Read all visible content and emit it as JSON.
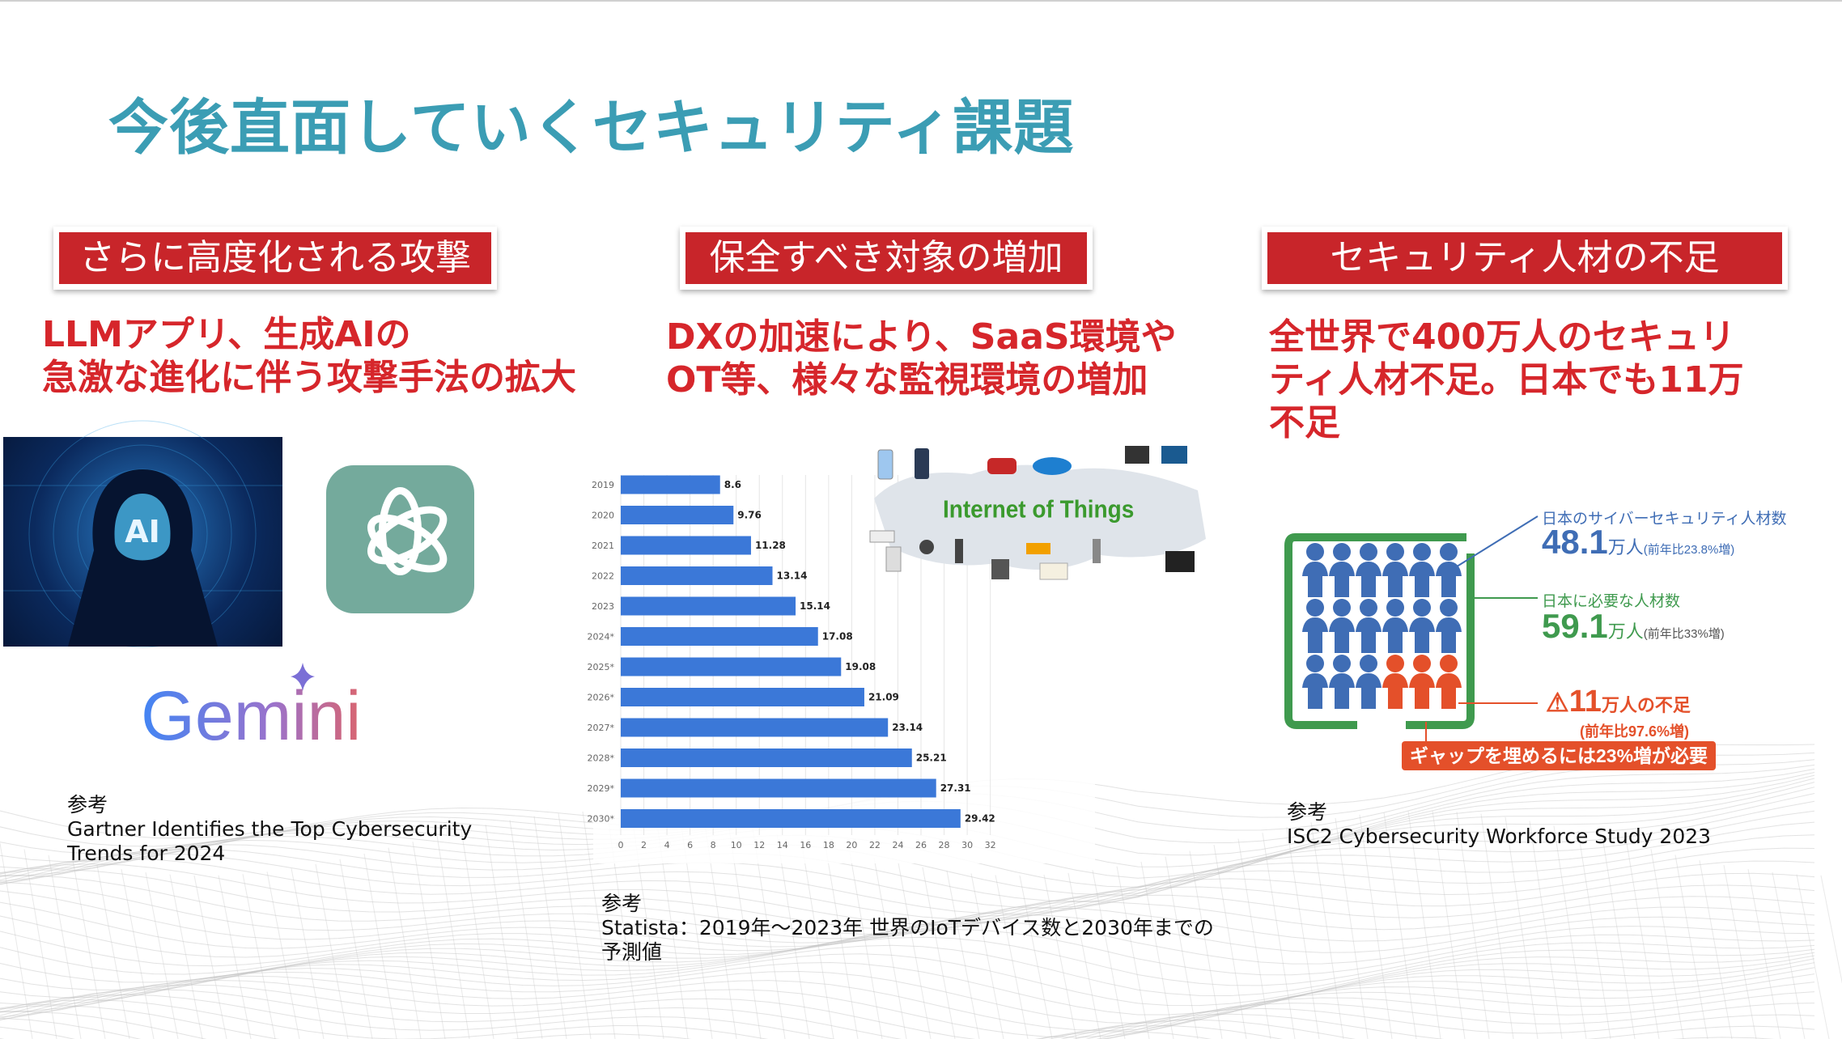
{
  "slide": {
    "title": "今後直面していくセキュリティ課題"
  },
  "columns": [
    {
      "tag": "さらに高度化される攻撃",
      "heading_lines": [
        "LLMアプリ、生成AIの",
        "急激な進化に伴う攻撃手法の拡大"
      ],
      "images": {
        "hacker_text": "AI",
        "openai_logo": "openai-logo",
        "gemini_logo": "Gemini"
      },
      "ref_label": "参考",
      "ref_lines": [
        "Gartner Identifies the Top Cybersecurity",
        "Trends for 2024"
      ]
    },
    {
      "tag": "保全すべき対象の増加",
      "heading_lines": [
        "DXの加速により、SaaS環境や",
        "OT等、様々な監視環境の増加"
      ],
      "iot_label": "Internet of Things",
      "ref_label": "参考",
      "ref_lines": [
        "Statista：2019年～2023年 世界のIoTデバイス数と2030年までの",
        "予測値"
      ]
    },
    {
      "tag": "セキュリティ人材の不足",
      "heading_lines": [
        "全世界で400万人のセキュリ",
        "ティ人材不足。日本でも11万",
        "不足"
      ],
      "ref_label": "参考",
      "ref_lines": [
        "ISC2 Cybersecurity Workforce Study 2023"
      ],
      "infographic": {
        "current_label": "日本のサイバーセキュリティ人材数",
        "current_value": "48.1",
        "current_unit": "万人",
        "current_note": "(前年比23.8%増)",
        "needed_label": "日本に必要な人材数",
        "needed_value": "59.1",
        "needed_unit": "万人",
        "needed_note": "(前年比33%増)",
        "shortage_value": "11",
        "shortage_unit": "万人の不足",
        "shortage_note": "(前年比97.6%増)",
        "gap_text": "ギャップを埋めるには23%増が必要",
        "people_total": 18,
        "people_short": 3,
        "colors": {
          "current": "#3f6db5",
          "needed": "#3f9a4e",
          "shortage": "#e4502a"
        }
      }
    }
  ],
  "chart_data": {
    "type": "bar",
    "orientation": "horizontal",
    "categories": [
      "2019",
      "2020",
      "2021",
      "2022",
      "2023",
      "2024*",
      "2025*",
      "2026*",
      "2027*",
      "2028*",
      "2029*",
      "2030*"
    ],
    "values": [
      8.6,
      9.76,
      11.28,
      13.14,
      15.14,
      17.08,
      19.08,
      21.09,
      23.14,
      25.21,
      27.31,
      29.42
    ],
    "value_labels": [
      "8.6",
      "9.76",
      "11.28",
      "13.14",
      "15.14",
      "17.08",
      "19.08",
      "21.09",
      "23.14",
      "25.21",
      "27.31",
      "29.42"
    ],
    "xticks": [
      "0",
      "2",
      "4",
      "6",
      "8",
      "10",
      "12",
      "14",
      "16",
      "18",
      "20",
      "22",
      "24",
      "26",
      "28",
      "30",
      "32"
    ],
    "xlim": [
      0,
      32
    ],
    "grid": true,
    "bar_color": "#3b78d8"
  },
  "colors": {
    "title": "#3b9db4",
    "tag_bg": "#c8252a",
    "heading": "#d6262b"
  }
}
